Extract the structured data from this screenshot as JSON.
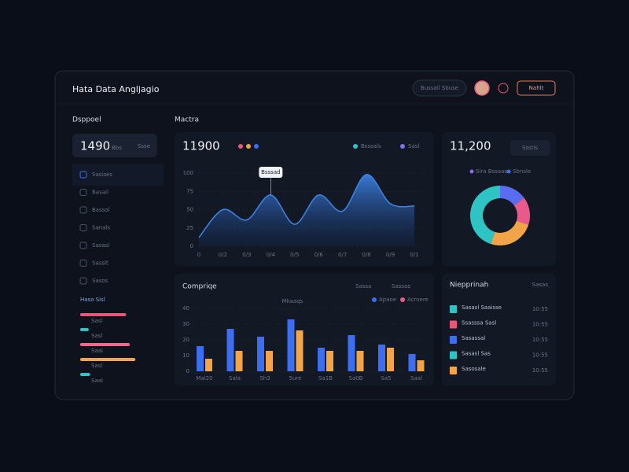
{
  "header": {
    "title": "Hata Data Angljagio",
    "search": "Bussail Sbuse",
    "button": "Nahlt"
  },
  "sidebar": {
    "label": "Dsppoel",
    "stat": "1490",
    "stat_unit": "Bbs",
    "stat_badge": "Ssse",
    "menu": [
      "Sasises",
      "Basail",
      "Bassol",
      "Sanals",
      "Sasasl",
      "Sasslt",
      "Sasos"
    ],
    "progress_label": "Haso Sisl",
    "progress": [
      {
        "label": "Sasl",
        "color": "#e8567a",
        "value": 65
      },
      {
        "label": "Sasl",
        "color": "#2ec4c4",
        "value": 12
      },
      {
        "label": "Saal",
        "color": "#ec6a90",
        "value": 70
      },
      {
        "label": "Sasl",
        "color": "#f2a548",
        "value": 78
      },
      {
        "label": "Saal",
        "color": "#2ec4c4",
        "value": 14
      }
    ]
  },
  "chart_data": [
    {
      "type": "area",
      "label": "Mactra",
      "value": "11900",
      "legend": [
        "Bsssals",
        "Sasl"
      ],
      "annotation": "Bsssad",
      "color": "#3d86e8",
      "categories": [
        "0",
        "0/2",
        "0/3",
        "0/4",
        "0/5",
        "0/6",
        "0/7",
        "0/8",
        "0/9",
        "0/1"
      ],
      "values": [
        12,
        50,
        36,
        70,
        30,
        70,
        48,
        98,
        58,
        55
      ],
      "ylim": [
        0,
        100
      ],
      "yticks": [
        0,
        25,
        50,
        75,
        100
      ]
    },
    {
      "type": "pie",
      "value": "11,200",
      "badge": "Ssstis",
      "legend": [
        "Slra Bssaasa",
        "Sbnsle"
      ],
      "categories": [
        null,
        null,
        null,
        null
      ],
      "values": [
        15,
        15,
        25,
        45
      ],
      "colors": [
        "#5a6cf0",
        "#e85a8a",
        "#f2a548",
        "#2ec4c4"
      ]
    },
    {
      "type": "bar",
      "title": "Compriqe",
      "tabs": [
        "Sassa",
        "Sassas"
      ],
      "annotation": "Mkaaqs",
      "categories": [
        "Mal20",
        "Sala",
        "Sh3",
        "5ure",
        "Sa1B",
        "Sa0B",
        "Sa5",
        "Saal"
      ],
      "series": [
        {
          "name": "Apaoe",
          "color": "#3d6ef0",
          "values": [
            16,
            27,
            22,
            33,
            15,
            23,
            17,
            11
          ]
        },
        {
          "name": "Acroere",
          "color": "#f2a548",
          "values": [
            8,
            13,
            13,
            26,
            13,
            13,
            15,
            7
          ]
        }
      ],
      "ylim": [
        0,
        40
      ],
      "yticks": [
        0,
        10,
        20,
        30,
        40
      ]
    }
  ],
  "list": {
    "title": "Niepprinah",
    "action": "Sasas",
    "items": [
      {
        "label": "Sasasl Saaisse",
        "color": "#2ec4c4",
        "time": "10:55"
      },
      {
        "label": "Ssasssa Sasl",
        "color": "#e8567a",
        "time": "10:55"
      },
      {
        "label": "Sasassal",
        "color": "#3d6ef0",
        "time": "10:55"
      },
      {
        "label": "Sasasl Sas",
        "color": "#2ec4c4",
        "time": "10:55"
      },
      {
        "label": "Sasosale",
        "color": "#f2a548",
        "time": "10:55"
      }
    ]
  }
}
